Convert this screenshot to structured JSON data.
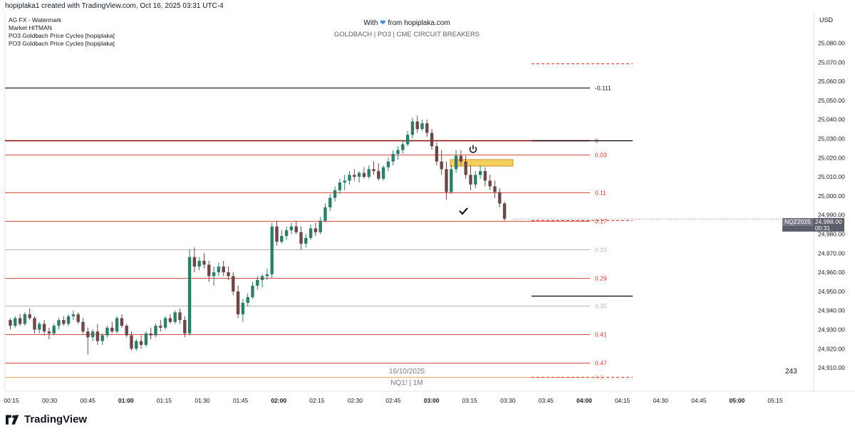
{
  "header": {
    "credit": "hopiplaka1 created with TradingView.com, Oct 16, 2025 03:31 UTC-4"
  },
  "legend": [
    "AG FX - Watermark",
    "Market HITMAN",
    "PO3 Goldbach Price Cycles [hopiplaka]",
    "PO3 Goldbach Price Cycles [hopiplaka]"
  ],
  "watermark": {
    "line1_prefix": "With",
    "line1_suffix": "from hopiplaka.com",
    "line2": "GOLDBACH | PO3 | CME CIRCUIT BREAKERS"
  },
  "footer": {
    "date": "16/10/2025",
    "symbol_line": "NQ1! | 1M",
    "count": "243",
    "brand": "TradingView"
  },
  "price_tag": {
    "symbol": "NQZ2025",
    "price": "24,988.00",
    "countdown": "00:31"
  },
  "chart_data": {
    "type": "candlestick",
    "currency_label": "USD",
    "y_ticks": [
      24910,
      24920,
      24930,
      24940,
      24950,
      24960,
      24970,
      24980,
      24990,
      25000,
      25010,
      25020,
      25030,
      25040,
      25050,
      25060,
      25070,
      25080
    ],
    "y_tick_labels": [
      "24,910.00",
      "24,920.00",
      "24,930.00",
      "24,940.00",
      "24,950.00",
      "24,960.00",
      "24,970.00",
      "24,980.00",
      "24,990.00",
      "25,000.00",
      "25,010.00",
      "25,020.00",
      "25,030.00",
      "25,040.00",
      "25,050.00",
      "25,060.00",
      "25,070.00",
      "25,080.00"
    ],
    "x_ticks": [
      {
        "label": "00:15",
        "bold": false
      },
      {
        "label": "00:30",
        "bold": false
      },
      {
        "label": "00:45",
        "bold": false
      },
      {
        "label": "01:00",
        "bold": true
      },
      {
        "label": "01:15",
        "bold": false
      },
      {
        "label": "01:30",
        "bold": false
      },
      {
        "label": "01:45",
        "bold": false
      },
      {
        "label": "02:00",
        "bold": true
      },
      {
        "label": "02:15",
        "bold": false
      },
      {
        "label": "02:30",
        "bold": false
      },
      {
        "label": "02:45",
        "bold": false
      },
      {
        "label": "03:00",
        "bold": true
      },
      {
        "label": "03:15",
        "bold": false
      },
      {
        "label": "03:30",
        "bold": false
      },
      {
        "label": "03:45",
        "bold": false
      },
      {
        "label": "04:00",
        "bold": true
      },
      {
        "label": "04:15",
        "bold": false
      },
      {
        "label": "04:30",
        "bold": false
      },
      {
        "label": "04:45",
        "bold": false
      },
      {
        "label": "05:00",
        "bold": true
      },
      {
        "label": "05:15",
        "bold": false
      }
    ],
    "levels": [
      {
        "label": "-0.111",
        "price": 25056.5,
        "color": "#000000",
        "label_color": "#131722",
        "style": "solid",
        "scope": "full"
      },
      {
        "label": "0",
        "price": 25029.0,
        "color": "#8b0000",
        "label_color": "#d32f2f",
        "style": "solid",
        "scope": "full"
      },
      {
        "label": "0.03",
        "price": 25021.6,
        "color": "#e04848",
        "label_color": "#d32f2f",
        "style": "solid",
        "scope": "full"
      },
      {
        "label": "0.11",
        "price": 25001.8,
        "color": "#e04848",
        "label_color": "#d32f2f",
        "style": "solid",
        "scope": "full"
      },
      {
        "label": "0.17",
        "price": 24986.9,
        "color": "#e04848",
        "label_color": "#d32f2f",
        "style": "solid",
        "scope": "full"
      },
      {
        "label": "0.23",
        "price": 24972.1,
        "color": "#b2b5be",
        "label_color": "#b2b5be",
        "style": "solid",
        "scope": "full"
      },
      {
        "label": "0.29",
        "price": 24957.2,
        "color": "#e04848",
        "label_color": "#d32f2f",
        "style": "solid",
        "scope": "full"
      },
      {
        "label": "0.35",
        "price": 24942.4,
        "color": "#b2b5be",
        "label_color": "#b2b5be",
        "style": "solid",
        "scope": "full"
      },
      {
        "label": "0.41",
        "price": 24927.5,
        "color": "#e04848",
        "label_color": "#d32f2f",
        "style": "solid",
        "scope": "full"
      },
      {
        "label": "0.47",
        "price": 24912.7,
        "color": "#e04848",
        "label_color": "#d32f2f",
        "style": "solid",
        "scope": "full"
      },
      {
        "label": "0.5",
        "price": 24905.3,
        "color": "#f7a35c",
        "label_color": "#f7a35c",
        "style": "solid",
        "scope": "full"
      }
    ],
    "projection_lines": [
      {
        "price": 25069.2,
        "color": "#e04848",
        "style": "dashed"
      },
      {
        "price": 25029.0,
        "color": "#000000",
        "style": "solid"
      },
      {
        "price": 24987.3,
        "color": "#e04848",
        "style": "dashed"
      },
      {
        "price": 24947.8,
        "color": "#000000",
        "style": "solid"
      },
      {
        "price": 24905.3,
        "color": "#e04848",
        "style": "dashed"
      }
    ],
    "ohlc": [
      [
        24935,
        24936,
        24930,
        24932
      ],
      [
        24932,
        24937,
        24931,
        24936
      ],
      [
        24936,
        24938,
        24932,
        24933
      ],
      [
        24933,
        24939,
        24932,
        24938
      ],
      [
        24938,
        24941,
        24935,
        24936
      ],
      [
        24936,
        24937,
        24928,
        24930
      ],
      [
        24930,
        24934,
        24928,
        24933
      ],
      [
        24933,
        24935,
        24927,
        24929
      ],
      [
        24929,
        24931,
        24925,
        24928
      ],
      [
        24928,
        24933,
        24927,
        24932
      ],
      [
        24932,
        24936,
        24930,
        24935
      ],
      [
        24935,
        24937,
        24932,
        24933
      ],
      [
        24933,
        24938,
        24932,
        24937
      ],
      [
        24937,
        24940,
        24935,
        24938
      ],
      [
        24938,
        24939,
        24933,
        24934
      ],
      [
        24934,
        24936,
        24928,
        24929
      ],
      [
        24929,
        24931,
        24917,
        24926
      ],
      [
        24926,
        24930,
        24924,
        24929
      ],
      [
        24929,
        24933,
        24922,
        24924
      ],
      [
        24924,
        24928,
        24922,
        24927
      ],
      [
        24927,
        24932,
        24926,
        24931
      ],
      [
        24931,
        24934,
        24928,
        24929
      ],
      [
        24929,
        24937,
        24928,
        24936
      ],
      [
        24936,
        24938,
        24931,
        24932
      ],
      [
        24932,
        24933,
        24926,
        24927
      ],
      [
        24927,
        24929,
        24919,
        24920
      ],
      [
        24920,
        24925,
        24919,
        24924
      ],
      [
        24924,
        24927,
        24920,
        24922
      ],
      [
        24922,
        24929,
        24921,
        24928
      ],
      [
        24928,
        24931,
        24925,
        24927
      ],
      [
        24927,
        24933,
        24926,
        24932
      ],
      [
        24932,
        24935,
        24929,
        24931
      ],
      [
        24931,
        24937,
        24930,
        24936
      ],
      [
        24936,
        24938,
        24933,
        24934
      ],
      [
        24934,
        24940,
        24933,
        24939
      ],
      [
        24939,
        24941,
        24933,
        24935
      ],
      [
        24935,
        24937,
        24926,
        24928
      ],
      [
        24928,
        24972,
        24927,
        24968
      ],
      [
        24968,
        24973,
        24960,
        24963
      ],
      [
        24963,
        24968,
        24961,
        24966
      ],
      [
        24966,
        24970,
        24962,
        24964
      ],
      [
        24964,
        24966,
        24955,
        24958
      ],
      [
        24958,
        24963,
        24953,
        24960
      ],
      [
        24960,
        24965,
        24958,
        24963
      ],
      [
        24963,
        24966,
        24958,
        24960
      ],
      [
        24960,
        24963,
        24956,
        24958
      ],
      [
        24958,
        24960,
        24948,
        24950
      ],
      [
        24950,
        24953,
        24936,
        24938
      ],
      [
        24938,
        24946,
        24934,
        24944
      ],
      [
        24944,
        24949,
        24942,
        24947
      ],
      [
        24947,
        24955,
        24946,
        24953
      ],
      [
        24953,
        24958,
        24951,
        24956
      ],
      [
        24956,
        24959,
        24952,
        24958
      ],
      [
        24958,
        24962,
        24956,
        24959
      ],
      [
        24959,
        24986,
        24957,
        24984
      ],
      [
        24984,
        24987,
        24974,
        24976
      ],
      [
        24976,
        24982,
        24975,
        24979
      ],
      [
        24979,
        24984,
        24977,
        24982
      ],
      [
        24982,
        24986,
        24980,
        24984
      ],
      [
        24984,
        24987,
        24980,
        24981
      ],
      [
        24981,
        24984,
        24972,
        24975
      ],
      [
        24975,
        24980,
        24973,
        24978
      ],
      [
        24978,
        24985,
        24977,
        24983
      ],
      [
        24983,
        24986,
        24979,
        24981
      ],
      [
        24981,
        24989,
        24980,
        24987
      ],
      [
        24987,
        24996,
        24986,
        24994
      ],
      [
        24994,
        25001,
        24992,
        24999
      ],
      [
        24999,
        25005,
        24997,
        25003
      ],
      [
        25003,
        25009,
        25001,
        25007
      ],
      [
        25007,
        25011,
        25003,
        25008
      ],
      [
        25008,
        25013,
        25006,
        25011
      ],
      [
        25011,
        25014,
        25008,
        25010
      ],
      [
        25010,
        25013,
        25007,
        25012
      ],
      [
        25012,
        25015,
        25009,
        25010
      ],
      [
        25010,
        25016,
        25009,
        25014
      ],
      [
        25014,
        25018,
        25011,
        25013
      ],
      [
        25013,
        25017,
        25008,
        25009
      ],
      [
        25009,
        25016,
        25008,
        25015
      ],
      [
        25015,
        25020,
        25013,
        25018
      ],
      [
        25018,
        25024,
        25016,
        25022
      ],
      [
        25022,
        25026,
        25019,
        25024
      ],
      [
        25024,
        25029,
        25022,
        25027
      ],
      [
        25027,
        25034,
        25026,
        25032
      ],
      [
        25032,
        25041,
        25030,
        25039
      ],
      [
        25039,
        25042,
        25033,
        25035
      ],
      [
        25035,
        25040,
        25034,
        25038
      ],
      [
        25038,
        25040,
        25031,
        25033
      ],
      [
        25033,
        25035,
        25024,
        25026
      ],
      [
        25026,
        25028,
        25016,
        25018
      ],
      [
        25018,
        25024,
        25011,
        25014
      ],
      [
        25014,
        25018,
        24998,
        25002
      ],
      [
        25002,
        25016,
        25001,
        25014
      ],
      [
        25014,
        25024,
        25012,
        25021
      ],
      [
        25021,
        25024,
        25016,
        25018
      ],
      [
        25018,
        25021,
        25009,
        25011
      ],
      [
        25011,
        25016,
        25003,
        25006
      ],
      [
        25006,
        25013,
        25004,
        25011
      ],
      [
        25011,
        25016,
        25009,
        25013
      ],
      [
        25013,
        25015,
        25005,
        25008
      ],
      [
        25008,
        25011,
        25003,
        25005
      ],
      [
        25005,
        25008,
        24999,
        25002
      ],
      [
        25002,
        25004,
        24994,
        24996
      ],
      [
        24996,
        24997,
        24987,
        24988
      ]
    ]
  }
}
